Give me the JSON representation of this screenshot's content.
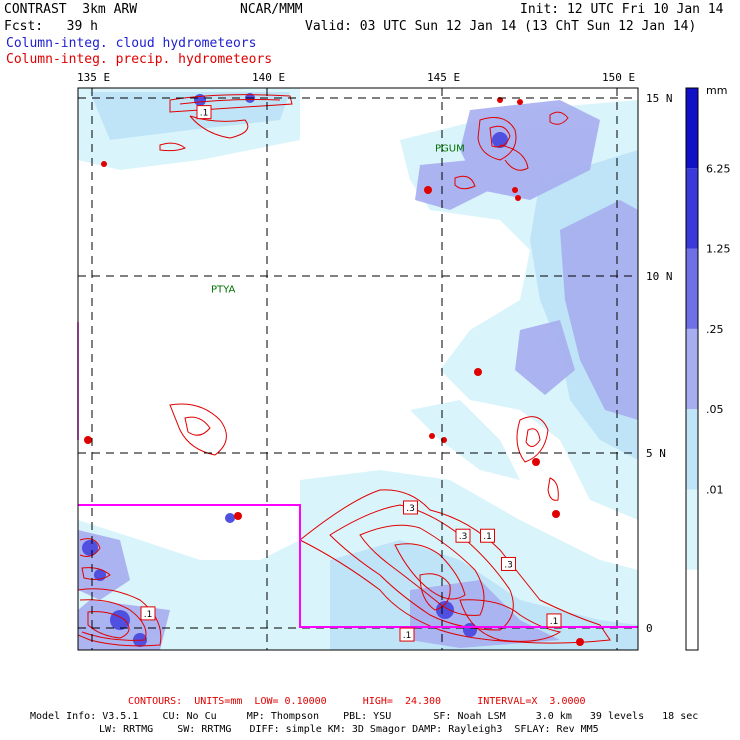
{
  "header": {
    "left_line1": "CONTRAST  3km ARW",
    "center_line1": "NCAR/MMM",
    "right_line1": "Init: 12 UTC Fri 10 Jan 14",
    "left_line2": "Fcst:   39 h",
    "right_line2": "Valid: 03 UTC Sun 12 Jan 14 (13 ChT Sun 12 Jan 14)",
    "legend1": "Column-integ. cloud hydrometeors",
    "legend2": "Column-integ. precip. hydrometeors",
    "legend1_color": "#2020d0",
    "legend2_color": "#e00000"
  },
  "axes": {
    "lon_labels": [
      "135 E",
      "140 E",
      "145 E",
      "150 E"
    ],
    "lat_labels": [
      "15 N",
      "10 N",
      "5 N",
      "0"
    ],
    "lon_values": [
      135,
      140,
      145,
      150
    ],
    "lat_values": [
      15,
      10,
      5,
      0
    ]
  },
  "map_labels": [
    {
      "text": "PGUM",
      "lon": 144.8,
      "lat": 13.5
    },
    {
      "text": "PTYA",
      "lon": 138.4,
      "lat": 9.5
    }
  ],
  "colorbar": {
    "unit": "mm",
    "labels": [
      "6.25",
      "1.25",
      ".25",
      ".05",
      ".01"
    ],
    "colors": [
      "#ffffff",
      "#d9f5fb",
      "#bfe3f7",
      "#a7aef0",
      "#6f6fe6",
      "#3a3ada",
      "#1010c8"
    ]
  },
  "contour_labels": [
    {
      "text": ".1",
      "lon": 138.2,
      "lat": 14.6
    },
    {
      "text": ".3",
      "lon": 144.1,
      "lat": 3.4
    },
    {
      "text": ".3",
      "lon": 145.6,
      "lat": 2.6
    },
    {
      "text": ".1",
      "lon": 146.3,
      "lat": 2.6
    },
    {
      "text": ".3",
      "lon": 146.9,
      "lat": 1.8
    },
    {
      "text": ".1",
      "lon": 136.6,
      "lat": 0.4
    },
    {
      "text": ".1",
      "lon": 144.0,
      "lat": -0.2
    },
    {
      "text": ".1",
      "lon": 148.2,
      "lat": 0.2
    }
  ],
  "footer": {
    "contours": "CONTOURS:  UNITS=mm  LOW= 0.10000      HIGH=  24.300      INTERVAL=X  3.0000",
    "model1": "Model Info: V3.5.1    CU: No Cu     MP: Thompson    PBL: YSU       SF: Noah LSM     3.0 km   39 levels   18 sec",
    "model2": "LW: RRTMG    SW: RRTMG   DIFF: simple KM: 3D Smagor DAMP: Rayleigh3  SFLAY: Rev MM5"
  }
}
